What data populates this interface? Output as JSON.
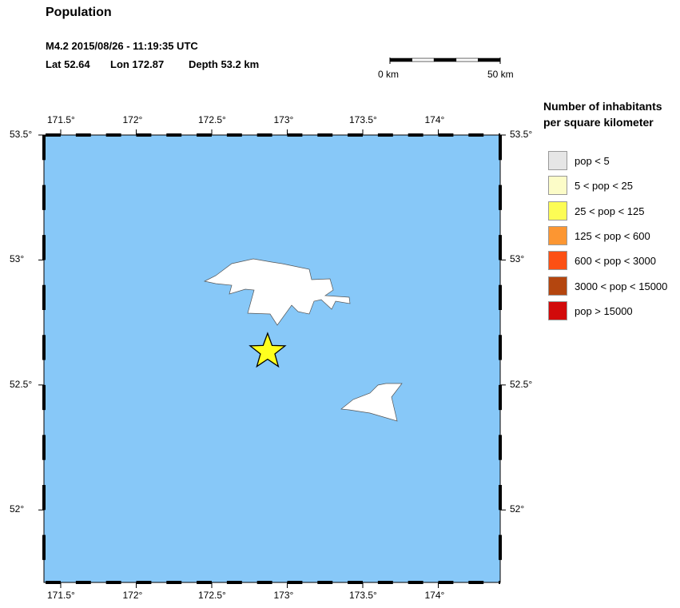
{
  "title": "Population",
  "event": {
    "line1": "M4.2  2015/08/26 - 11:19:35 UTC",
    "lat_label": "Lat 52.64",
    "lon_label": "Lon 172.87",
    "depth_label": "Depth  53.2 km",
    "lat": 52.64,
    "lon": 172.87
  },
  "scale_bar": {
    "start": "0 km",
    "end": "50 km"
  },
  "map": {
    "lon_range": [
      171.389,
      174.41
    ],
    "lat_range": [
      51.71,
      53.5
    ],
    "lon_ticks": [
      "171.5°",
      "172°",
      "172.5°",
      "173°",
      "173.5°",
      "174°"
    ],
    "lat_ticks": [
      "53.5°",
      "53°",
      "52.5°",
      "52°"
    ],
    "ocean_color": "#87c8f8",
    "land_color": "#ffffff",
    "epicenter_icon": "star-icon",
    "epicenter_color": "#ffff1e"
  },
  "legend": {
    "title_line1": "Number of inhabitants",
    "title_line2": "per square kilometer",
    "items": [
      {
        "label": "pop < 5",
        "color": "#e6e6e6"
      },
      {
        "label": "5 < pop < 25",
        "color": "#fcfcc8"
      },
      {
        "label": "25 < pop < 125",
        "color": "#fcfc55"
      },
      {
        "label": "125 < pop < 600",
        "color": "#fc9632"
      },
      {
        "label": "600 < pop < 3000",
        "color": "#fc5014"
      },
      {
        "label": "3000 < pop < 15000",
        "color": "#b4460f"
      },
      {
        "label": "pop > 15000",
        "color": "#d20a0a"
      }
    ]
  }
}
